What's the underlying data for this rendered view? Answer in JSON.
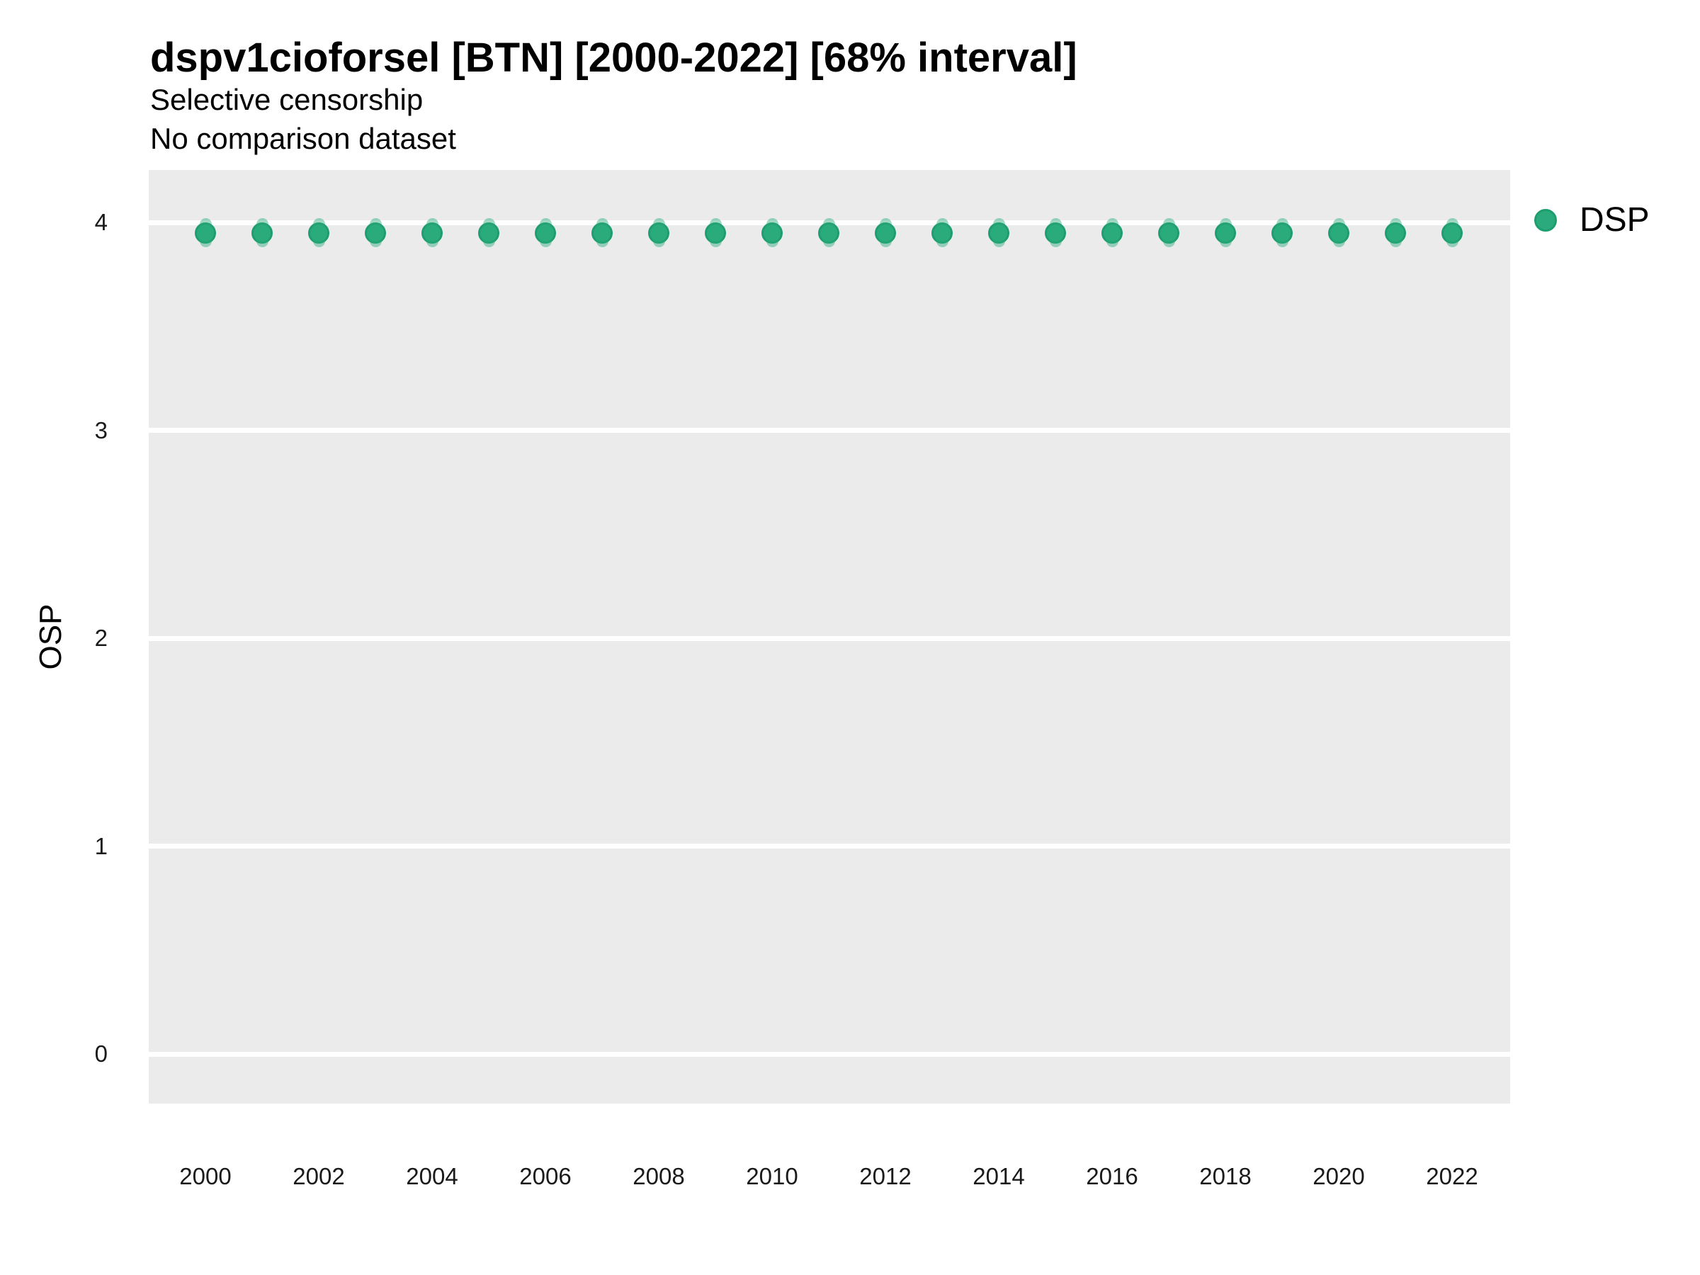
{
  "title": "dspv1cioforsel [BTN] [2000-2022] [68% interval]",
  "subtitle1": "Selective censorship",
  "subtitle2": "No comparison dataset",
  "y_axis_title": "OSP",
  "legend": {
    "items": [
      {
        "label": "DSP",
        "color": "#2BAB7D"
      }
    ]
  },
  "colors": {
    "panel_bg": "#EBEBEB",
    "gridline": "#FFFFFF",
    "point_fill": "#2BAB7D",
    "point_rim": "#1E9D6E",
    "interval_overlay": "rgba(43,171,125,0.45)",
    "text": "#000000"
  },
  "chart_data": {
    "type": "scatter",
    "title": "dspv1cioforsel [BTN] [2000-2022] [68% interval]",
    "subtitle": [
      "Selective censorship",
      "No comparison dataset"
    ],
    "xlabel": "",
    "ylabel": "OSP",
    "xlim": [
      1999,
      2023
    ],
    "ylim": [
      -0.25,
      4.25
    ],
    "x_ticks": [
      2000,
      2002,
      2004,
      2006,
      2008,
      2010,
      2012,
      2014,
      2016,
      2018,
      2020,
      2022
    ],
    "y_ticks": [
      4,
      3,
      2,
      1,
      0
    ],
    "grid": "horizontal major gridlines, white on grey panel",
    "legend_position": "right-top",
    "interval_level": "68%",
    "series": [
      {
        "name": "DSP",
        "color": "#2BAB7D",
        "x": [
          2000,
          2001,
          2002,
          2003,
          2004,
          2005,
          2006,
          2007,
          2008,
          2009,
          2010,
          2011,
          2012,
          2013,
          2014,
          2015,
          2016,
          2017,
          2018,
          2019,
          2020,
          2021,
          2022
        ],
        "y": [
          3.95,
          3.95,
          3.95,
          3.95,
          3.95,
          3.95,
          3.95,
          3.95,
          3.95,
          3.95,
          3.95,
          3.95,
          3.95,
          3.95,
          3.95,
          3.95,
          3.95,
          3.95,
          3.95,
          3.95,
          3.95,
          3.95,
          3.95
        ],
        "interval_low": [
          3.88,
          3.88,
          3.88,
          3.88,
          3.88,
          3.88,
          3.88,
          3.88,
          3.88,
          3.88,
          3.88,
          3.88,
          3.88,
          3.88,
          3.88,
          3.88,
          3.88,
          3.88,
          3.88,
          3.88,
          3.88,
          3.88,
          3.88
        ],
        "interval_high": [
          4.02,
          4.02,
          4.02,
          4.02,
          4.02,
          4.02,
          4.02,
          4.02,
          4.02,
          4.02,
          4.02,
          4.02,
          4.02,
          4.02,
          4.02,
          4.02,
          4.02,
          4.02,
          4.02,
          4.02,
          4.02,
          4.02,
          4.02
        ]
      }
    ]
  }
}
